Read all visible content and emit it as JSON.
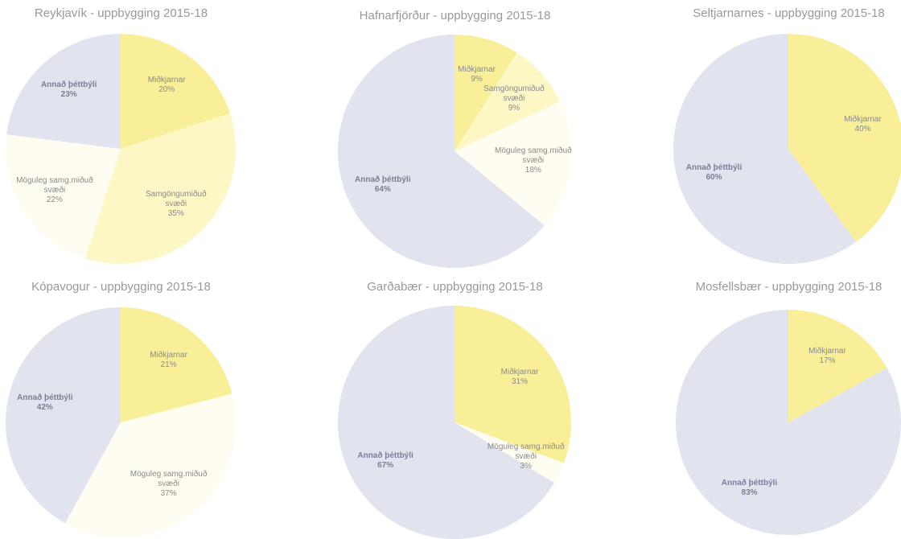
{
  "chart_data": [
    {
      "type": "pie",
      "title": "Reykjavík - uppbygging 2015-18",
      "categories": [
        "Miðkjarnar",
        "Samgöngumiðuð svæði",
        "Möguleg samg.miðuð svæði",
        "Annað þéttbýli"
      ],
      "values": [
        20,
        35,
        22,
        23
      ],
      "value_labels": [
        "20%",
        "35%",
        "22%",
        "23%"
      ],
      "colors": [
        "#f9ef98",
        "#fdf7c6",
        "#fffdf2",
        "#e1e3ee"
      ]
    },
    {
      "type": "pie",
      "title": "Hafnarfjörður - uppbygging 2015-18",
      "categories": [
        "Miðkjarnar",
        "Samgöngumiðuð svæði",
        "Möguleg samg.miðuð svæði",
        "Annað þéttbýli"
      ],
      "values": [
        9,
        9,
        18,
        64
      ],
      "value_labels": [
        "9%",
        "9%",
        "18%",
        "64%"
      ],
      "colors": [
        "#f9ef98",
        "#fdf7c6",
        "#fffdf2",
        "#e1e3ee"
      ]
    },
    {
      "type": "pie",
      "title": "Seltjarnarnes - uppbygging 2015-18",
      "categories": [
        "Miðkjarnar",
        "Annað þéttbýli"
      ],
      "values": [
        40,
        60
      ],
      "value_labels": [
        "40%",
        "60%"
      ],
      "colors": [
        "#f9ef98",
        "#e1e3ee"
      ]
    },
    {
      "type": "pie",
      "title": "Kópavogur - uppbygging 2015-18",
      "categories": [
        "Miðkjarnar",
        "Möguleg samg.miðuð svæði",
        "Annað þéttbýli"
      ],
      "values": [
        21,
        37,
        42
      ],
      "value_labels": [
        "21%",
        "37%",
        "42%"
      ],
      "colors": [
        "#f9ef98",
        "#fffdf2",
        "#e1e3ee"
      ]
    },
    {
      "type": "pie",
      "title": "Garðabær - uppbygging 2015-18",
      "categories": [
        "Miðkjarnar",
        "Möguleg samg.miðuð svæði",
        "Annað þéttbýli"
      ],
      "values": [
        31,
        3,
        67
      ],
      "value_labels": [
        "31%",
        "3%",
        "67%"
      ],
      "colors": [
        "#f9ef98",
        "#fffdf2",
        "#e1e3ee"
      ]
    },
    {
      "type": "pie",
      "title": "Mosfellsbær - uppbygging 2015-18",
      "categories": [
        "Miðkjarnar",
        "Annað þéttbýli"
      ],
      "values": [
        17,
        83
      ],
      "value_labels": [
        "17%",
        "83%"
      ],
      "colors": [
        "#f9ef98",
        "#e1e3ee"
      ]
    }
  ]
}
